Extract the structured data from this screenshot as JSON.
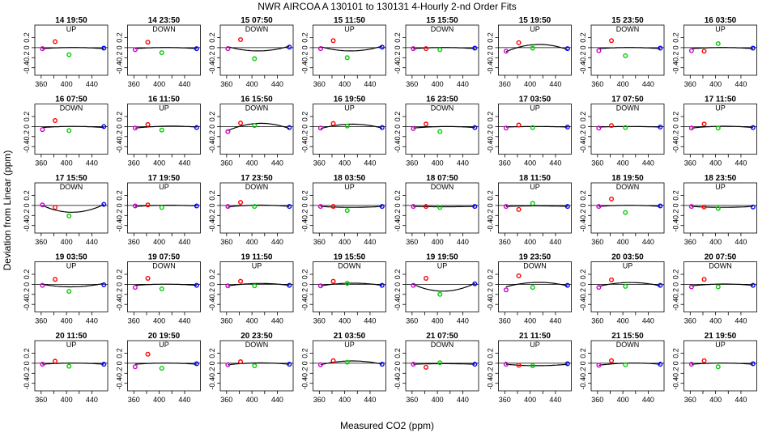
{
  "chart_data": {
    "type": "scatter",
    "title": "NWR   AIRCOA A   130101 to 130131   4-Hourly 2-nd Order Fits",
    "xlabel": "Measured CO2 (ppm)",
    "ylabel": "Deviation from Linear (ppm)",
    "xlim": [
      350,
      465
    ],
    "ylim": [
      -0.55,
      0.45
    ],
    "xticks": [
      360,
      400,
      440
    ],
    "xtick_labels": [
      "360",
      "",
      "400",
      "",
      "440"
    ],
    "xtick_positions": [
      360,
      380,
      400,
      420,
      440
    ],
    "yticks": [
      -0.4,
      -0.2,
      0.0,
      0.2
    ],
    "ytick_labels": [
      "-0.4",
      "-0.2",
      "0",
      "0.2"
    ],
    "points_x": [
      362,
      382,
      404,
      459
    ],
    "point_colors": [
      "#cc00cc",
      "#ff0000",
      "#00cc00",
      "#0000ff"
    ],
    "panels": [
      {
        "title": "14 19:50",
        "dir": "UP",
        "y": [
          -0.02,
          0.12,
          -0.14,
          -0.01
        ],
        "fit": [
          -0.02,
          0.0,
          0.0,
          -0.02
        ]
      },
      {
        "title": "14 23:50",
        "dir": "DOWN",
        "y": [
          -0.04,
          0.11,
          -0.1,
          -0.02
        ],
        "fit": [
          -0.02,
          0.0,
          0.0,
          -0.02
        ]
      },
      {
        "title": "15 07:50",
        "dir": "DOWN",
        "y": [
          -0.02,
          0.16,
          -0.22,
          0.01
        ],
        "fit": [
          0.02,
          -0.05,
          -0.06,
          0.03
        ]
      },
      {
        "title": "15 11:50",
        "dir": "UP",
        "y": [
          -0.02,
          0.14,
          -0.2,
          0.01
        ],
        "fit": [
          0.02,
          -0.05,
          -0.06,
          0.03
        ]
      },
      {
        "title": "15 15:50",
        "dir": "DOWN",
        "y": [
          -0.02,
          -0.02,
          -0.04,
          -0.01
        ],
        "fit": [
          -0.02,
          0.0,
          0.0,
          -0.02
        ]
      },
      {
        "title": "15 19:50",
        "dir": "UP",
        "y": [
          -0.07,
          0.1,
          -0.01,
          -0.02
        ],
        "fit": [
          -0.08,
          0.03,
          0.05,
          -0.04
        ]
      },
      {
        "title": "15 23:50",
        "dir": "DOWN",
        "y": [
          -0.06,
          0.14,
          -0.16,
          -0.01
        ],
        "fit": [
          -0.02,
          0.0,
          0.0,
          -0.02
        ]
      },
      {
        "title": "16 03:50",
        "dir": "UP",
        "y": [
          -0.06,
          -0.07,
          0.08,
          -0.01
        ],
        "fit": [
          -0.02,
          0.0,
          0.0,
          -0.02
        ]
      },
      {
        "title": "16 07:50",
        "dir": "DOWN",
        "y": [
          -0.06,
          0.12,
          -0.08,
          0.0
        ],
        "fit": [
          -0.02,
          0.0,
          0.0,
          -0.02
        ]
      },
      {
        "title": "16 11:50",
        "dir": "UP",
        "y": [
          -0.03,
          0.04,
          -0.07,
          -0.02
        ],
        "fit": [
          -0.03,
          0.0,
          0.0,
          -0.01
        ]
      },
      {
        "title": "16 15:50",
        "dir": "DOWN",
        "y": [
          -0.1,
          0.07,
          0.02,
          -0.02
        ],
        "fit": [
          -0.08,
          0.03,
          0.05,
          -0.04
        ]
      },
      {
        "title": "16 19:50",
        "dir": "UP",
        "y": [
          -0.03,
          0.06,
          0.01,
          -0.02
        ],
        "fit": [
          -0.04,
          0.03,
          0.04,
          -0.03
        ]
      },
      {
        "title": "16 23:50",
        "dir": "DOWN",
        "y": [
          -0.04,
          0.05,
          -0.1,
          -0.02
        ],
        "fit": [
          -0.03,
          0.0,
          -0.01,
          -0.02
        ]
      },
      {
        "title": "17 03:50",
        "dir": "UP",
        "y": [
          -0.03,
          0.03,
          -0.02,
          -0.01
        ],
        "fit": [
          -0.01,
          0.0,
          0.0,
          -0.01
        ]
      },
      {
        "title": "17 07:50",
        "dir": "DOWN",
        "y": [
          -0.03,
          0.02,
          -0.02,
          -0.01
        ],
        "fit": [
          -0.01,
          0.0,
          0.0,
          -0.01
        ]
      },
      {
        "title": "17 11:50",
        "dir": "UP",
        "y": [
          -0.03,
          0.05,
          -0.03,
          -0.02
        ],
        "fit": [
          -0.03,
          0.0,
          0.0,
          -0.02
        ]
      },
      {
        "title": "17 15:50",
        "dir": "DOWN",
        "y": [
          0.01,
          -0.04,
          -0.21,
          0.02
        ],
        "fit": [
          0.0,
          -0.1,
          -0.14,
          0.02
        ]
      },
      {
        "title": "17 19:50",
        "dir": "UP",
        "y": [
          -0.01,
          0.01,
          -0.04,
          -0.01
        ],
        "fit": [
          -0.02,
          0.0,
          0.0,
          -0.01
        ]
      },
      {
        "title": "17 23:50",
        "dir": "DOWN",
        "y": [
          -0.02,
          0.06,
          -0.02,
          -0.02
        ],
        "fit": [
          -0.03,
          0.0,
          0.0,
          -0.02
        ]
      },
      {
        "title": "18 03:50",
        "dir": "UP",
        "y": [
          -0.02,
          -0.02,
          -0.1,
          -0.02
        ],
        "fit": [
          -0.02,
          -0.03,
          -0.04,
          -0.02
        ]
      },
      {
        "title": "18 07:50",
        "dir": "DOWN",
        "y": [
          -0.02,
          -0.02,
          -0.04,
          -0.02
        ],
        "fit": [
          -0.02,
          -0.02,
          -0.03,
          -0.02
        ]
      },
      {
        "title": "18 11:50",
        "dir": "UP",
        "y": [
          -0.02,
          -0.08,
          0.04,
          -0.02
        ],
        "fit": [
          -0.02,
          -0.01,
          -0.01,
          -0.02
        ]
      },
      {
        "title": "18 19:50",
        "dir": "DOWN",
        "y": [
          -0.02,
          0.13,
          -0.14,
          -0.01
        ],
        "fit": [
          -0.02,
          0.0,
          0.0,
          -0.02
        ]
      },
      {
        "title": "18 23:50",
        "dir": "UP",
        "y": [
          -0.02,
          -0.03,
          -0.06,
          -0.03
        ],
        "fit": [
          -0.02,
          -0.03,
          -0.04,
          -0.02
        ]
      },
      {
        "title": "19 03:50",
        "dir": "UP",
        "y": [
          -0.02,
          0.1,
          -0.14,
          -0.01
        ],
        "fit": [
          0.0,
          -0.04,
          -0.05,
          0.02
        ]
      },
      {
        "title": "19 07:50",
        "dir": "DOWN",
        "y": [
          -0.06,
          0.12,
          -0.09,
          -0.02
        ],
        "fit": [
          -0.02,
          0.0,
          0.0,
          -0.02
        ]
      },
      {
        "title": "19 11:50",
        "dir": "UP",
        "y": [
          -0.03,
          0.06,
          -0.03,
          -0.02
        ],
        "fit": [
          -0.03,
          0.01,
          0.01,
          -0.02
        ]
      },
      {
        "title": "19 15:50",
        "dir": "DOWN",
        "y": [
          -0.03,
          0.06,
          0.02,
          -0.02
        ],
        "fit": [
          -0.03,
          0.01,
          0.02,
          -0.02
        ]
      },
      {
        "title": "19 19:50",
        "dir": "UP",
        "y": [
          -0.02,
          0.12,
          -0.2,
          0.01
        ],
        "fit": [
          0.0,
          -0.1,
          -0.14,
          0.02
        ]
      },
      {
        "title": "19 23:50",
        "dir": "DOWN",
        "y": [
          -0.11,
          0.17,
          -0.06,
          -0.02
        ],
        "fit": [
          -0.05,
          0.02,
          0.03,
          -0.03
        ]
      },
      {
        "title": "20 03:50",
        "dir": "UP",
        "y": [
          -0.06,
          0.09,
          -0.04,
          -0.02
        ],
        "fit": [
          -0.04,
          0.02,
          0.03,
          -0.03
        ]
      },
      {
        "title": "20 07:50",
        "dir": "DOWN",
        "y": [
          -0.05,
          0.1,
          -0.05,
          -0.02
        ],
        "fit": [
          -0.03,
          0.0,
          0.0,
          -0.02
        ]
      },
      {
        "title": "20 11:50",
        "dir": "UP",
        "y": [
          -0.02,
          0.04,
          -0.06,
          -0.02
        ],
        "fit": [
          -0.02,
          0.0,
          0.0,
          -0.02
        ]
      },
      {
        "title": "20 19:50",
        "dir": "UP",
        "y": [
          -0.07,
          0.18,
          -0.1,
          -0.01
        ],
        "fit": [
          -0.02,
          0.0,
          0.0,
          -0.02
        ]
      },
      {
        "title": "20 23:50",
        "dir": "DOWN",
        "y": [
          -0.03,
          0.03,
          -0.05,
          -0.02
        ],
        "fit": [
          -0.03,
          0.0,
          0.0,
          -0.02
        ]
      },
      {
        "title": "21 03:50",
        "dir": "UP",
        "y": [
          -0.03,
          0.05,
          0.02,
          -0.02
        ],
        "fit": [
          -0.03,
          0.03,
          0.04,
          -0.02
        ]
      },
      {
        "title": "21 07:50",
        "dir": "DOWN",
        "y": [
          -0.02,
          -0.08,
          0.01,
          -0.02
        ],
        "fit": [
          -0.02,
          -0.01,
          -0.01,
          -0.02
        ]
      },
      {
        "title": "21 11:50",
        "dir": "UP",
        "y": [
          -0.02,
          -0.04,
          -0.05,
          -0.01
        ],
        "fit": [
          -0.02,
          -0.04,
          -0.05,
          -0.02
        ]
      },
      {
        "title": "21 15:50",
        "dir": "DOWN",
        "y": [
          -0.04,
          0.05,
          -0.03,
          -0.02
        ],
        "fit": [
          -0.04,
          0.0,
          -0.01,
          -0.02
        ]
      },
      {
        "title": "21 19:50",
        "dir": "UP",
        "y": [
          -0.02,
          0.05,
          -0.07,
          -0.01
        ],
        "fit": [
          -0.02,
          0.0,
          0.0,
          -0.02
        ]
      }
    ]
  }
}
